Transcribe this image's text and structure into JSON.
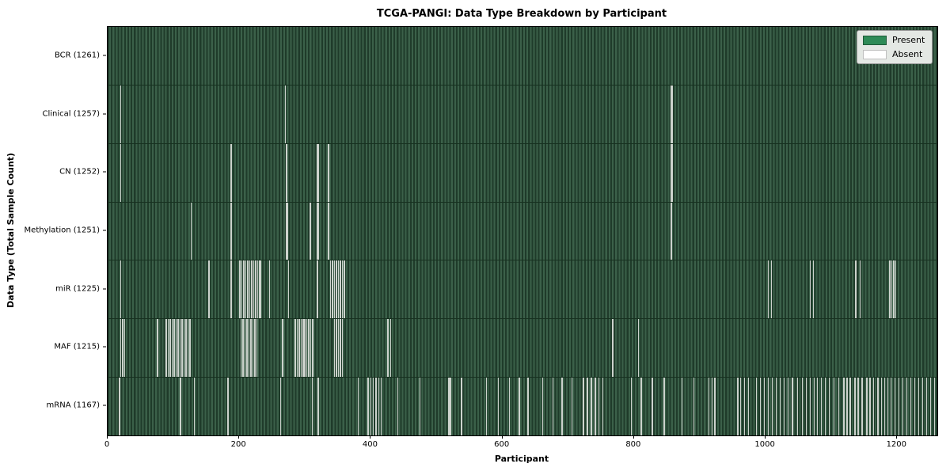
{
  "chart_data": {
    "type": "heatmap",
    "title": "TCGA-PANGI: Data Type Breakdown by Participant",
    "xlabel": "Participant",
    "ylabel": "Data Type (Total Sample Count)",
    "x_ticks": [
      0,
      200,
      400,
      600,
      800,
      1000,
      1200
    ],
    "x_range": [
      0,
      1261
    ],
    "n_participants": 1261,
    "grid": false,
    "legend": {
      "position": "upper right",
      "entries": [
        {
          "label": "Present",
          "color": "#2e8b57"
        },
        {
          "label": "Absent",
          "color": "#ffffff"
        }
      ]
    },
    "rows": [
      {
        "label": "BCR (1261)",
        "data_type": "BCR",
        "present_count": 1261,
        "absent_count": 0,
        "absent_indices": []
      },
      {
        "label": "Clinical (1257)",
        "data_type": "Clinical",
        "present_count": 1257,
        "absent_count": 4,
        "absent_indices": [
          19,
          269,
          856,
          857
        ]
      },
      {
        "label": "CN (1252)",
        "data_type": "CN",
        "present_count": 1252,
        "absent_count": 9,
        "absent_indices": [
          19,
          187,
          271,
          318,
          320,
          334,
          335,
          856,
          857
        ]
      },
      {
        "label": "Methylation (1251)",
        "data_type": "Methylation",
        "present_count": 1251,
        "absent_count": 10,
        "absent_indices": [
          126,
          187,
          271,
          272,
          307,
          318,
          320,
          334,
          335,
          856
        ]
      },
      {
        "label": "miR (1225)",
        "data_type": "miR",
        "present_count": 1225,
        "absent_count": 36,
        "absent_indices": [
          19,
          153,
          187,
          200,
          203,
          206,
          209,
          212,
          215,
          218,
          221,
          224,
          227,
          230,
          232,
          245,
          274,
          318,
          338,
          341,
          344,
          347,
          350,
          353,
          356,
          359,
          1003,
          1008,
          1067,
          1072,
          1136,
          1143,
          1188,
          1191,
          1194,
          1197
        ]
      },
      {
        "label": "MAF (1215)",
        "data_type": "MAF",
        "present_count": 1215,
        "absent_count": 46,
        "absent_indices": [
          19,
          22,
          25,
          75,
          88,
          91,
          94,
          97,
          100,
          103,
          106,
          109,
          112,
          115,
          118,
          121,
          124,
          202,
          205,
          208,
          211,
          214,
          217,
          220,
          223,
          226,
          265,
          284,
          287,
          290,
          293,
          296,
          299,
          302,
          305,
          308,
          311,
          344,
          347,
          350,
          353,
          356,
          425,
          429,
          767,
          806
        ]
      },
      {
        "label": "mRNA (1167)",
        "data_type": "mRNA",
        "present_count": 1167,
        "absent_count": 94,
        "absent_indices": [
          17,
          110,
          131,
          182,
          262,
          310,
          319,
          380,
          395,
          399,
          403,
          407,
          411,
          415,
          440,
          474,
          517,
          519,
          521,
          537,
          575,
          593,
          610,
          625,
          638,
          660,
          676,
          690,
          705,
          722,
          728,
          734,
          740,
          746,
          752,
          795,
          810,
          827,
          845,
          872,
          890,
          913,
          918,
          922,
          957,
          961,
          967,
          973,
          985,
          991,
          997,
          1003,
          1009,
          1015,
          1021,
          1027,
          1033,
          1040,
          1048,
          1055,
          1061,
          1067,
          1073,
          1078,
          1084,
          1090,
          1096,
          1103,
          1110,
          1118,
          1123,
          1128,
          1135,
          1140,
          1146,
          1153,
          1158,
          1163,
          1170,
          1175,
          1180,
          1185,
          1190,
          1196,
          1202,
          1208,
          1214,
          1220,
          1226,
          1232,
          1238,
          1244,
          1250,
          1256
        ]
      }
    ]
  },
  "colors": {
    "present": "#2e8b57",
    "absent": "#ffffff",
    "stripe_dark": "#1f3b2a",
    "stripe_light": "#3b6049",
    "absent_line": "#cdd3cd",
    "row_divider": "#16301f",
    "frame": "#000000",
    "legend_bg": "#e4e8e4"
  }
}
